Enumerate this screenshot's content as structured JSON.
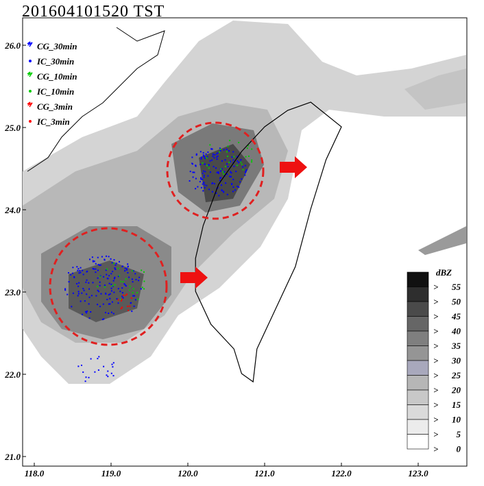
{
  "title": "201604101520 TST",
  "legend": [
    {
      "label": "CG_30min",
      "color": "#0000ff"
    },
    {
      "label": "IC_30min",
      "color": "#0000ff"
    },
    {
      "label": "CG_10min",
      "color": "#00cc00"
    },
    {
      "label": "IC_10min",
      "color": "#00cc00"
    },
    {
      "label": "CG_3min",
      "color": "#ff0000"
    },
    {
      "label": "IC_3min",
      "color": "#ff0000"
    }
  ],
  "x_axis": {
    "labels": [
      "118.0",
      "119.0",
      "120.0",
      "121.0",
      "122.0",
      "123.0"
    ]
  },
  "y_axis": {
    "labels": [
      "26.0",
      "25.0",
      "24.0",
      "23.0",
      "22.0",
      "21.0"
    ]
  },
  "colorbar": {
    "unit": "dBZ",
    "levels": [
      {
        "symbol": ">",
        "value": "55",
        "color": "#111111"
      },
      {
        "symbol": ">",
        "value": "50",
        "color": "#2e2e2e"
      },
      {
        "symbol": ">",
        "value": "45",
        "color": "#4a4a4a"
      },
      {
        "symbol": ">",
        "value": "40",
        "color": "#666666"
      },
      {
        "symbol": ">",
        "value": "35",
        "color": "#7f7f7f"
      },
      {
        "symbol": ">",
        "value": "30",
        "color": "#959595"
      },
      {
        "symbol": ">",
        "value": "25",
        "color": "#a8a8bc"
      },
      {
        "symbol": ">",
        "value": "20",
        "color": "#b6b6b6"
      },
      {
        "symbol": ">",
        "value": "15",
        "color": "#c8c8c8"
      },
      {
        "symbol": ">",
        "value": "10",
        "color": "#dadada"
      },
      {
        "symbol": ">",
        "value": "5",
        "color": "#ececec"
      },
      {
        "symbol": ">",
        "value": "0",
        "color": "#ffffff"
      }
    ]
  }
}
